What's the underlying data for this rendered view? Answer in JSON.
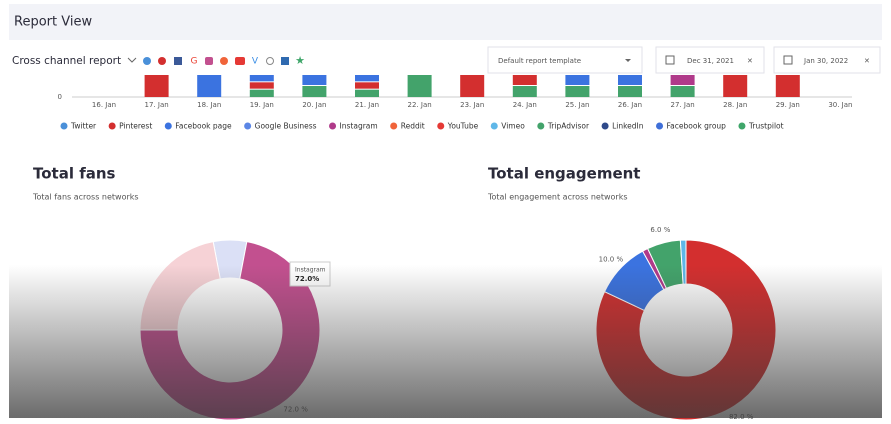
{
  "header": {
    "title": "Report View"
  },
  "toolbar": {
    "title": "Cross channel report",
    "template": "Default report template",
    "date_from": "Dec 31, 2021",
    "date_to": "Jan 30, 2022"
  },
  "timeline": {
    "yticks": [
      0
    ],
    "categories": [
      "16. Jan",
      "17. Jan",
      "18. Jan",
      "19. Jan",
      "20. Jan",
      "21. Jan",
      "22. Jan",
      "23. Jan",
      "24. Jan",
      "25. Jan",
      "26. Jan",
      "27. Jan",
      "28. Jan",
      "29. Jan",
      "30. Jan"
    ],
    "bar_colors": [
      [],
      [
        "#d32f2f"
      ],
      [
        "#3b73e0"
      ],
      [
        "#3b73e0",
        "#d32f2f",
        "#43a36b"
      ],
      [
        "#3b73e0",
        "#43a36b"
      ],
      [
        "#3b73e0",
        "#d32f2f",
        "#43a36b"
      ],
      [
        "#43a36b"
      ],
      [
        "#d32f2f"
      ],
      [
        "#d32f2f",
        "#43a36b"
      ],
      [
        "#3b73e0",
        "#43a36b"
      ],
      [
        "#3b73e0",
        "#43a36b"
      ],
      [
        "#b03a8a",
        "#43a36b"
      ],
      [
        "#d32f2f"
      ],
      [
        "#d32f2f"
      ],
      []
    ],
    "legend": [
      {
        "name": "Twitter",
        "color": "#4a90d9"
      },
      {
        "name": "Pinterest",
        "color": "#d32f2f"
      },
      {
        "name": "Facebook page",
        "color": "#3b73e0"
      },
      {
        "name": "Google Business",
        "color": "#5b86e5"
      },
      {
        "name": "Instagram",
        "color": "#b03a8a"
      },
      {
        "name": "Reddit",
        "color": "#f0643a"
      },
      {
        "name": "YouTube",
        "color": "#e53935"
      },
      {
        "name": "Vimeo",
        "color": "#5fb7e8"
      },
      {
        "name": "TripAdvisor",
        "color": "#43a36b"
      },
      {
        "name": "LinkedIn",
        "color": "#2f4a8a"
      },
      {
        "name": "Facebook group",
        "color": "#3f6fd8"
      },
      {
        "name": "Trustpilot",
        "color": "#3fa66a"
      }
    ]
  },
  "chart_data": [
    {
      "type": "pie",
      "title": "Total fans",
      "subtitle": "Total fans across networks",
      "categories": [
        "Google Business",
        "Instagram",
        "Pinterest"
      ],
      "values": [
        6,
        72,
        22
      ],
      "colors": [
        "#dbe0f6",
        "#c2508f",
        "#f6d2d6"
      ],
      "value_labels": [
        null,
        "72.0 %",
        null
      ],
      "tooltip": {
        "name": "Instagram",
        "value": "72.0%"
      }
    },
    {
      "type": "pie",
      "title": "Total engagement",
      "subtitle": "Total engagement across networks",
      "categories": [
        "Pinterest",
        "Facebook page",
        "Instagram",
        "TripAdvisor",
        "Vimeo"
      ],
      "values": [
        82,
        10,
        1,
        6,
        1
      ],
      "colors": [
        "#d32f2f",
        "#3b73e0",
        "#b03a8a",
        "#43a36b",
        "#5fb7e8"
      ],
      "value_labels": [
        "82.0 %",
        "10.0 %",
        null,
        "6.0 %",
        null
      ]
    }
  ]
}
